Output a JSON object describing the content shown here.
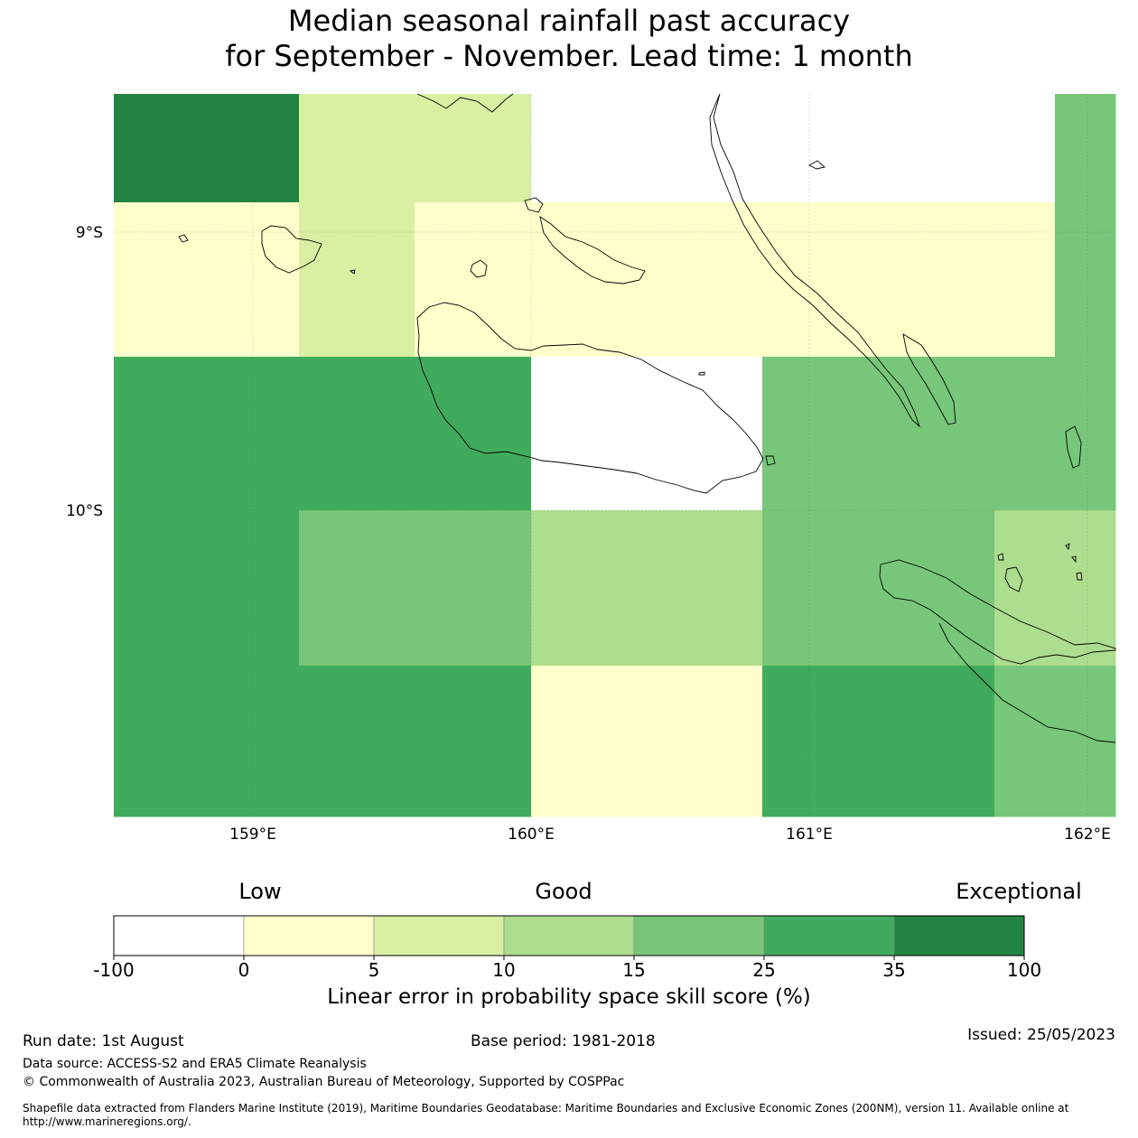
{
  "title_line1": "Median seasonal rainfall past accuracy",
  "title_line2": "for September - November. Lead time: 1 month",
  "map": {
    "lat_labels": [
      "9°S",
      "10°S"
    ],
    "lon_labels": [
      "159°E",
      "160°E",
      "161°E",
      "162°E"
    ],
    "rows": [
      [
        5,
        1,
        1,
        -1,
        -1,
        -1,
        -1,
        -1,
        3
      ],
      [
        0,
        1,
        0,
        0,
        0,
        0,
        0,
        0,
        3
      ],
      [
        4,
        4,
        4,
        -1,
        -1,
        3,
        3,
        3,
        3
      ],
      [
        4,
        3,
        3,
        2,
        2,
        3,
        3,
        2,
        2
      ],
      [
        4,
        4,
        4,
        0,
        0,
        4,
        4,
        3,
        3
      ]
    ]
  },
  "colorbar": {
    "categories": [
      "Low",
      "Good",
      "Exceptional"
    ],
    "ticks": [
      "-100",
      "0",
      "5",
      "10",
      "15",
      "25",
      "35",
      "100"
    ],
    "colors": [
      "#ffffff",
      "#ffffcc",
      "#d9f0a3",
      "#addd8e",
      "#78c679",
      "#41ab5d",
      "#238443"
    ],
    "xlabel": "Linear error in probability space skill score (%)"
  },
  "footer": {
    "run_date": "Run date: 1st August",
    "base_period": "Base period: 1981-2018",
    "issued": "Issued: 25/05/2023",
    "data_source": "Data source: ACCESS-S2 and ERA5 Climate Reanalysis",
    "copyright": "© Commonwealth of Australia 2023, Australian Bureau of Meteorology, Supported by COSPPac",
    "shapefile_line1": "Shapefile data extracted from Flanders Marine Institute (2019), Maritime Boundaries Geodatabase: Maritime Boundaries and Exclusive Economic Zones (200NM), version 11. Available online at",
    "shapefile_line2": "http://www.marineregions.org/."
  }
}
